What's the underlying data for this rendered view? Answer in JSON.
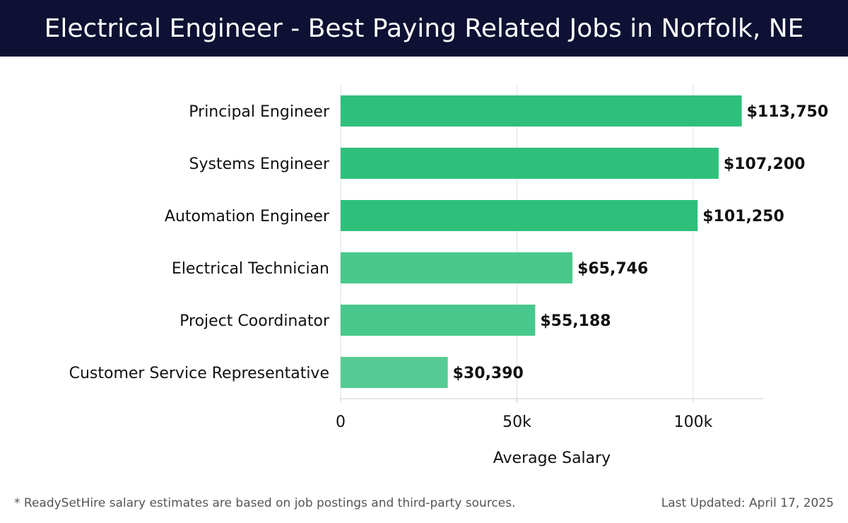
{
  "header": {
    "title": "Electrical Engineer - Best Paying Related Jobs in Norfolk, NE"
  },
  "footer": {
    "note": "* ReadySetHire salary estimates are based on job postings and third-party sources.",
    "updated": "Last Updated: April 17, 2025"
  },
  "colors": {
    "header_bg": "#0e1133",
    "bar_colors": [
      "#2ec07a",
      "#2ec07a",
      "#2ec07a",
      "#48c88a",
      "#48c88a",
      "#56cc94"
    ]
  },
  "chart_data": {
    "type": "bar",
    "orientation": "horizontal",
    "categories": [
      "Principal Engineer",
      "Systems Engineer",
      "Automation Engineer",
      "Electrical Technician",
      "Project Coordinator",
      "Customer Service Representative"
    ],
    "values": [
      113750,
      107200,
      101250,
      65746,
      55188,
      30390
    ],
    "value_labels": [
      "$113,750",
      "$107,200",
      "$101,250",
      "$65,746",
      "$55,188",
      "$30,390"
    ],
    "xlabel": "Average Salary",
    "ylabel": "",
    "xlim": [
      0,
      120000
    ],
    "x_ticks": [
      0,
      50000,
      100000
    ],
    "x_tick_labels": [
      "0",
      "50k",
      "100k"
    ],
    "grid": true
  }
}
